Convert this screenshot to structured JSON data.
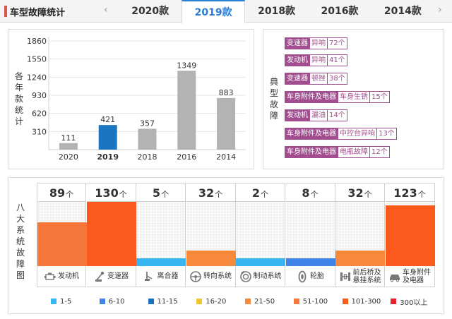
{
  "header": {
    "title": "车型故障统计",
    "tabs": [
      {
        "label": "2020款"
      },
      {
        "label": "2019款"
      },
      {
        "label": "2018款"
      },
      {
        "label": "2016款"
      },
      {
        "label": "2014款"
      }
    ],
    "active_tab": "2019款"
  },
  "yearly": {
    "side_label": "各年款统计",
    "highlight_color": "#1b76c2",
    "bar_color": "#b3b3b3"
  },
  "chart_data": {
    "type": "bar",
    "categories": [
      "2020",
      "2019",
      "2018",
      "2016",
      "2014"
    ],
    "values": [
      111,
      421,
      357,
      1349,
      883
    ],
    "highlight": "2019",
    "yticks": [
      310,
      620,
      930,
      1240,
      1550,
      1860
    ],
    "ylim": [
      0,
      1860
    ],
    "grid": true
  },
  "typical": {
    "side_label": "典型故障",
    "accent_color": "#a14d8f",
    "faults": [
      {
        "category": "变速器",
        "issue": "异响",
        "count": "72个"
      },
      {
        "category": "发动机",
        "issue": "异响",
        "count": "41个"
      },
      {
        "category": "变速器",
        "issue": "顿挫",
        "count": "38个"
      },
      {
        "category": "车身附件及电器",
        "issue": "车身生锈",
        "count": "15个"
      },
      {
        "category": "发动机",
        "issue": "漏油",
        "count": "14个"
      },
      {
        "category": "车身附件及电器",
        "issue": "中控台异响",
        "count": "13个"
      },
      {
        "category": "车身附件及电器",
        "issue": "电瓶故障",
        "count": "12个"
      }
    ]
  },
  "systems": {
    "side_label": "八大系统故障图",
    "unit": "个",
    "items": [
      {
        "name": "发动机",
        "count": "89",
        "level": 89,
        "color": "#f5783a",
        "icon": "engine-icon"
      },
      {
        "name": "变速器",
        "count": "130",
        "level": 130,
        "color": "#fb5a1c",
        "icon": "gearbox-icon"
      },
      {
        "name": "离合器",
        "count": "5",
        "level": 5,
        "color": "#38b4f1",
        "icon": "clutch-icon"
      },
      {
        "name": "转向系统",
        "count": "32",
        "level": 32,
        "color": "#f7893b",
        "icon": "steering-icon"
      },
      {
        "name": "制动系统",
        "count": "2",
        "level": 2,
        "color": "#38b4f1",
        "icon": "brake-icon"
      },
      {
        "name": "轮胎",
        "count": "8",
        "level": 8,
        "color": "#3f85e8",
        "icon": "tire-icon"
      },
      {
        "name": "前后桥及悬挂系统",
        "name_lines": [
          "前后桥及",
          "悬挂系统"
        ],
        "count": "32",
        "level": 32,
        "color": "#f7893b",
        "icon": "suspension-icon"
      },
      {
        "name": "车身附件及电器",
        "name_lines": [
          "车身附件",
          "及电器"
        ],
        "count": "123",
        "level": 123,
        "color": "#fb5a1c",
        "icon": "body-electric-icon"
      }
    ],
    "legend": [
      {
        "label": "1-5",
        "color": "#38b4f1"
      },
      {
        "label": "6-10",
        "color": "#3f85e8"
      },
      {
        "label": "11-15",
        "color": "#1b6fb8"
      },
      {
        "label": "16-20",
        "color": "#f4c430"
      },
      {
        "label": "21-50",
        "color": "#f7893b"
      },
      {
        "label": "51-100",
        "color": "#f5783a"
      },
      {
        "label": "101-300",
        "color": "#fb5a1c"
      },
      {
        "label": "300以上",
        "color": "#e8222c"
      }
    ]
  }
}
